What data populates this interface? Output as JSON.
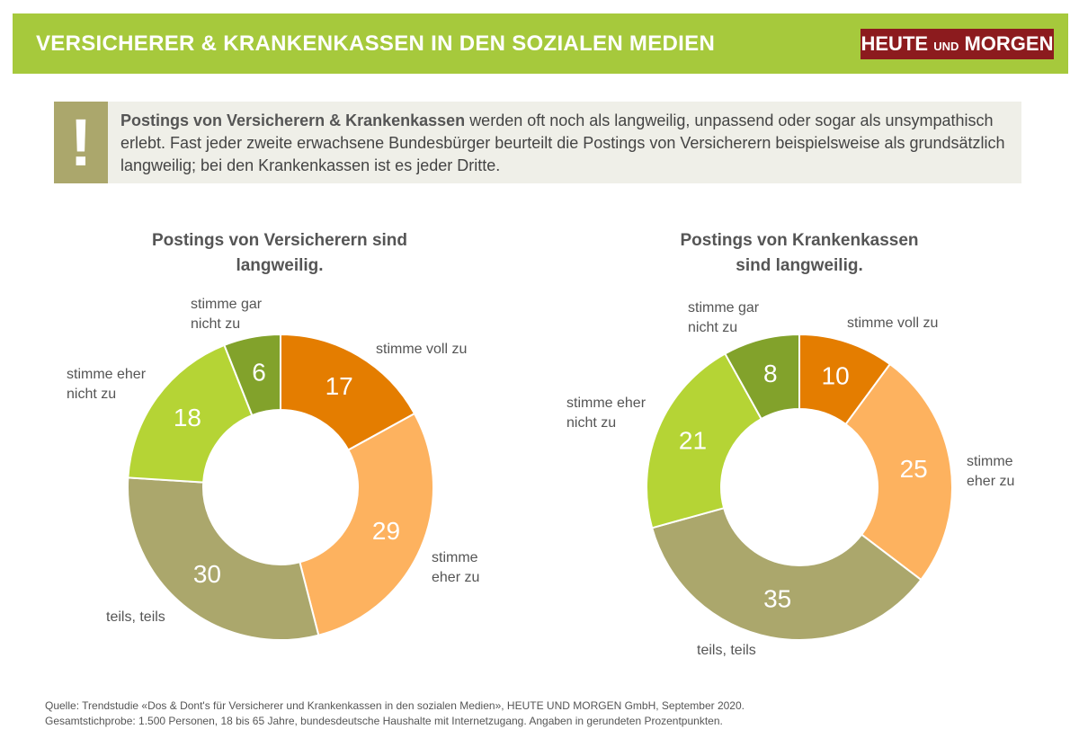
{
  "header": {
    "title": "VERSICHERER & KRANKENKASSEN IN DEN SOZIALEN MEDIEN",
    "logo": [
      "HEUTE",
      "UND",
      "MORGEN"
    ]
  },
  "callout": {
    "bold": "Postings von Versicherern & Krankenkassen",
    "text": "werden oft noch als langweilig, unpassend oder sogar als unsympathisch erlebt. Fast jeder zweite erwachsene Bundesbürger beurteilt die Postings von Versicherern beispielsweise als grundsätzlich langweilig; bei den Krankenkassen ist es jeder Dritte."
  },
  "chart_data": [
    {
      "type": "donut",
      "title": "Postings von Versicherern sind langweilig.",
      "categories": [
        "stimme voll zu",
        "stimme eher zu",
        "teils, teils",
        "stimme eher nicht zu",
        "stimme gar nicht zu"
      ],
      "values": [
        17,
        29,
        30,
        18,
        6
      ],
      "colors": [
        "#e47d00",
        "#fdb25f",
        "#aba76c",
        "#b5d435",
        "#82a22b"
      ]
    },
    {
      "type": "donut",
      "title": "Postings von Krankenkassen sind langweilig.",
      "categories": [
        "stimme voll zu",
        "stimme eher zu",
        "teils, teils",
        "stimme eher nicht zu",
        "stimme gar nicht zu"
      ],
      "values": [
        10,
        25,
        35,
        21,
        8
      ],
      "colors": [
        "#e47d00",
        "#fdb25f",
        "#aba76c",
        "#b5d435",
        "#82a22b"
      ]
    }
  ],
  "source": [
    "Quelle: Trendstudie «Dos & Dont's für Versicherer und Krankenkassen in den sozialen Medien», HEUTE UND MORGEN GmbH, September 2020.",
    "Gesamtstichprobe: 1.500 Personen, 18 bis 65 Jahre, bundesdeutsche Haushalte mit Internetzugang. Angaben in gerundeten Prozentpunkten."
  ]
}
